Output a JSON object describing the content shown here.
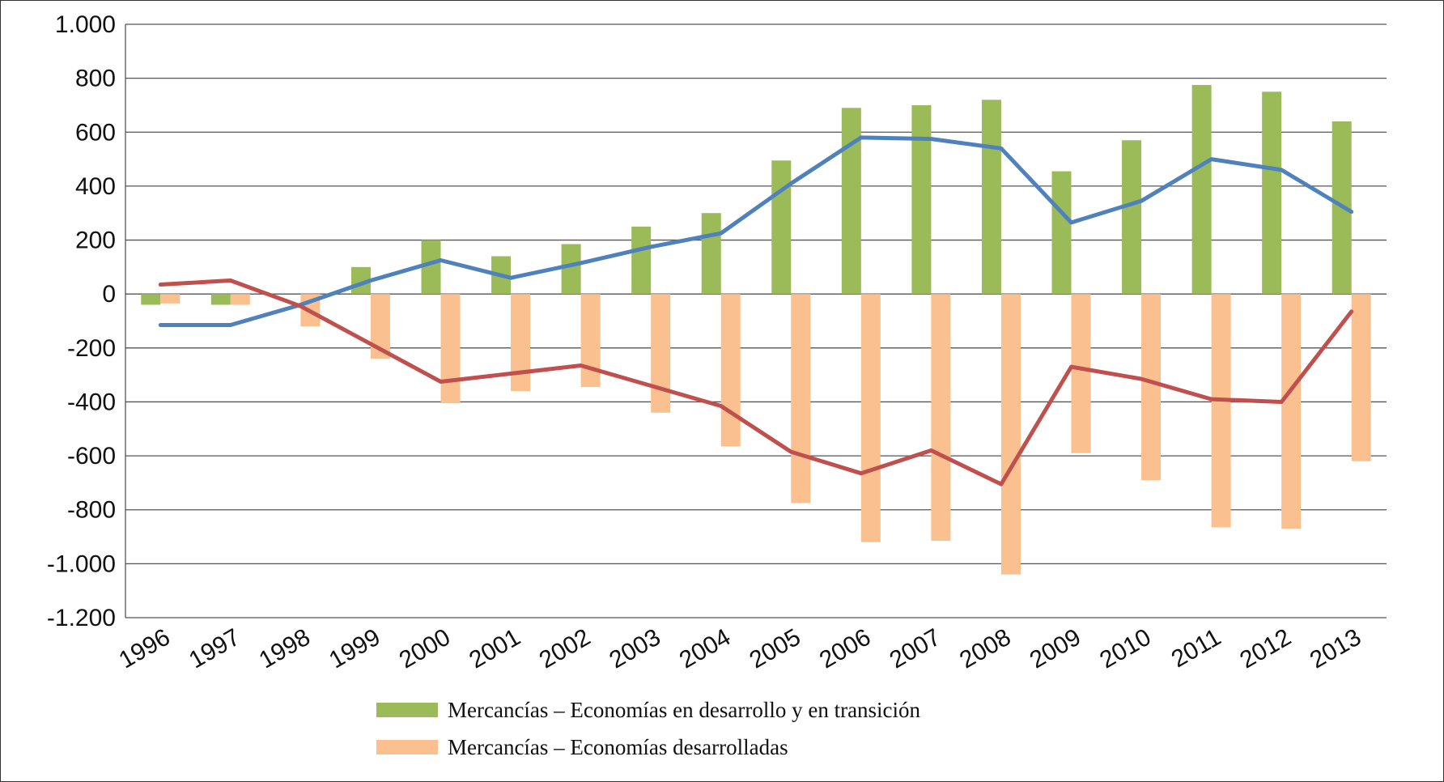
{
  "chart_data": {
    "type": "bar",
    "title": "",
    "xlabel": "",
    "ylabel": "",
    "ylim": [
      -1200,
      1000
    ],
    "y_ticks": [
      1000,
      800,
      600,
      400,
      200,
      0,
      -200,
      -400,
      -600,
      -800,
      -1000,
      -1200
    ],
    "y_tick_labels": [
      "1.000",
      "800",
      "600",
      "400",
      "200",
      "0",
      "-200",
      "-400",
      "-600",
      "-800",
      "-1.000",
      "-1.200"
    ],
    "grid": true,
    "legend_position": "bottom",
    "categories": [
      "1996",
      "1997",
      "1998",
      "1999",
      "2000",
      "2001",
      "2002",
      "2003",
      "2004",
      "2005",
      "2006",
      "2007",
      "2008",
      "2009",
      "2010",
      "2011",
      "2012",
      "2013"
    ],
    "series": [
      {
        "name": "Mercancías – Economías en desarrollo y en transición",
        "kind": "bar",
        "color": "#9BBB59",
        "values": [
          -40,
          -40,
          0,
          100,
          200,
          140,
          185,
          250,
          300,
          495,
          690,
          700,
          720,
          455,
          570,
          775,
          750,
          640
        ]
      },
      {
        "name": "Mercancías – Economías desarrolladas",
        "kind": "bar",
        "color": "#FAC090",
        "values": [
          -35,
          -40,
          -120,
          -240,
          -405,
          -360,
          -345,
          -440,
          -565,
          -775,
          -920,
          -915,
          -1040,
          -590,
          -690,
          -865,
          -870,
          -620
        ]
      },
      {
        "name": "",
        "kind": "line",
        "color": "#4F81BD",
        "values": [
          -115,
          -115,
          -40,
          50,
          125,
          60,
          115,
          175,
          225,
          410,
          580,
          575,
          540,
          265,
          345,
          500,
          460,
          305
        ]
      },
      {
        "name": "",
        "kind": "line",
        "color": "#C0504D",
        "values": [
          35,
          50,
          -45,
          -185,
          -325,
          -295,
          -265,
          -340,
          -415,
          -585,
          -665,
          -580,
          -705,
          -270,
          -315,
          -390,
          -400,
          -65
        ]
      }
    ]
  }
}
